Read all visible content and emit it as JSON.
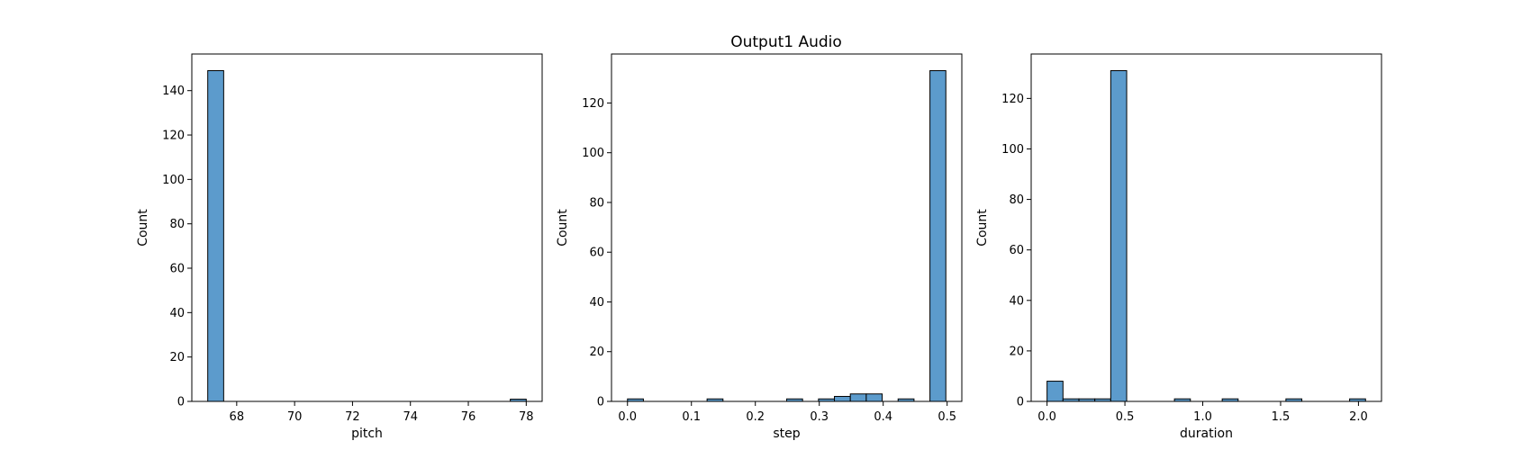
{
  "figure": {
    "suptitle": "Output1 Audio",
    "bar_color": "#5c9bcc",
    "edge_color": "#000000"
  },
  "chart_data": [
    {
      "type": "bar",
      "subtype": "histogram",
      "xlabel": "pitch",
      "ylabel": "Count",
      "xlim": [
        66.45,
        78.55
      ],
      "ylim": [
        0,
        156.5
      ],
      "xticks": [
        68,
        70,
        72,
        74,
        76,
        78
      ],
      "yticks": [
        0,
        20,
        40,
        60,
        80,
        100,
        120,
        140
      ],
      "bin_edges": [
        67,
        67.55,
        77.45,
        78
      ],
      "bins": [
        {
          "x0": 67.0,
          "x1": 67.55,
          "count": 149
        },
        {
          "x0": 77.45,
          "x1": 78.0,
          "count": 1
        }
      ]
    },
    {
      "type": "bar",
      "subtype": "histogram",
      "xlabel": "step",
      "ylabel": "Count",
      "xlim": [
        -0.025,
        0.523
      ],
      "ylim": [
        0,
        139.7
      ],
      "xticks": [
        0.0,
        0.1,
        0.2,
        0.3,
        0.4,
        0.5
      ],
      "yticks": [
        0,
        20,
        40,
        60,
        80,
        100,
        120
      ],
      "bins": [
        {
          "x0": 0.0,
          "x1": 0.0249,
          "count": 1
        },
        {
          "x0": 0.1245,
          "x1": 0.1494,
          "count": 1
        },
        {
          "x0": 0.249,
          "x1": 0.2739,
          "count": 1
        },
        {
          "x0": 0.2988,
          "x1": 0.3237,
          "count": 1
        },
        {
          "x0": 0.3237,
          "x1": 0.3486,
          "count": 2
        },
        {
          "x0": 0.3486,
          "x1": 0.3735,
          "count": 3
        },
        {
          "x0": 0.3735,
          "x1": 0.3984,
          "count": 3
        },
        {
          "x0": 0.4233,
          "x1": 0.4482,
          "count": 1
        },
        {
          "x0": 0.4731,
          "x1": 0.498,
          "count": 133
        }
      ]
    },
    {
      "type": "bar",
      "subtype": "histogram",
      "xlabel": "duration",
      "ylabel": "Count",
      "xlim": [
        -0.102,
        2.148
      ],
      "ylim": [
        0,
        137.6
      ],
      "xticks": [
        0.0,
        0.5,
        1.0,
        1.5,
        2.0
      ],
      "yticks": [
        0,
        20,
        40,
        60,
        80,
        100,
        120
      ],
      "bins": [
        {
          "x0": 0.0,
          "x1": 0.1023,
          "count": 8
        },
        {
          "x0": 0.1023,
          "x1": 0.2046,
          "count": 1
        },
        {
          "x0": 0.2046,
          "x1": 0.3068,
          "count": 1
        },
        {
          "x0": 0.3068,
          "x1": 0.4091,
          "count": 1
        },
        {
          "x0": 0.4091,
          "x1": 0.5114,
          "count": 131
        },
        {
          "x0": 0.8182,
          "x1": 0.9205,
          "count": 1
        },
        {
          "x0": 1.125,
          "x1": 1.2273,
          "count": 1
        },
        {
          "x0": 1.5341,
          "x1": 1.6364,
          "count": 1
        },
        {
          "x0": 1.9432,
          "x1": 2.0455,
          "count": 1
        }
      ]
    }
  ]
}
